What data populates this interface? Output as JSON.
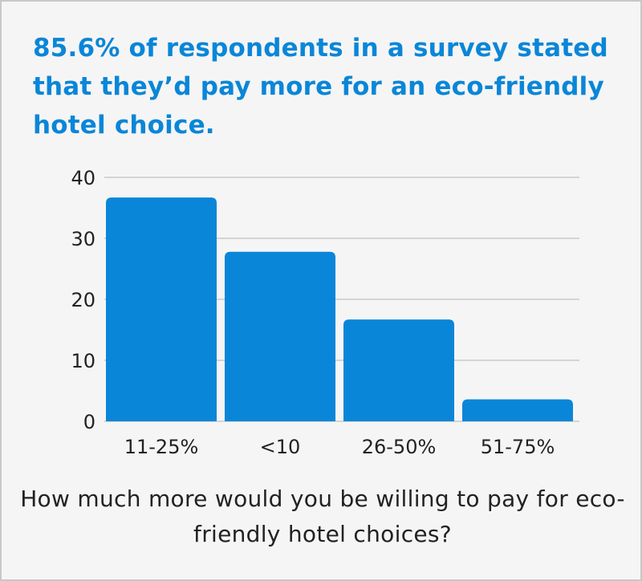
{
  "chart_data": {
    "type": "bar",
    "title": "85.6% of respondents in a survey stated that they’d pay more for an eco-friendly hotel choice.",
    "xlabel": "How much more would you be willing to pay for eco-friendly hotel choices?",
    "ylabel": "",
    "categories": [
      "11-25%",
      "<10",
      "26-50%",
      "51-75%"
    ],
    "values": [
      36.7,
      27.8,
      16.7,
      3.6
    ],
    "ylim": [
      0,
      40
    ],
    "yticks": [
      "0",
      "10",
      "20",
      "30",
      "40"
    ],
    "grid": true,
    "legend": "none",
    "colors": {
      "bar": "#0a86d8",
      "title": "#0a86d8",
      "grid": "#c9c9c9",
      "text": "#222222"
    }
  }
}
